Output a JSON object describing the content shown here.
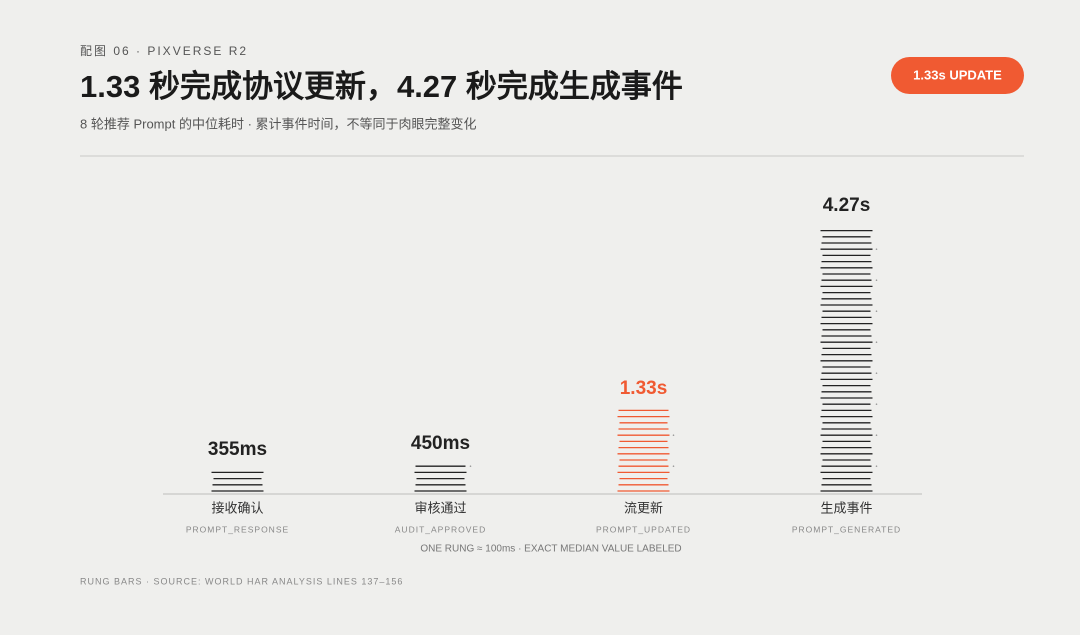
{
  "chart_data": {
    "type": "bar",
    "kicker": "配图 06 · PIXVERSE R2",
    "title": "1.33 秒完成协议更新，4.27 秒完成生成事件",
    "subtitle": "8 轮推荐 Prompt 的中位耗时 · 累计事件时间，不等同于肉眼完整变化",
    "badge": "1.33s UPDATE",
    "categories": [
      "接收确认",
      "审核通过",
      "流更新",
      "生成事件"
    ],
    "category_codes": [
      "PROMPT_RESPONSE",
      "AUDIT_APPROVED",
      "PROMPT_UPDATED",
      "PROMPT_GENERATED"
    ],
    "values": [
      355,
      450,
      1330,
      4270
    ],
    "value_labels": [
      "355ms",
      "450ms",
      "1.33s",
      "4.27s"
    ],
    "colors": [
      "#222222",
      "#222222",
      "#f05a32",
      "#222222"
    ],
    "badge_color": "#f05a32",
    "note": "ONE RUNG ≈ 100ms · EXACT MEDIAN VALUE LABELED",
    "source": "RUNG BARS · SOURCE: WORLD HAR ANALYSIS LINES 137–156"
  }
}
